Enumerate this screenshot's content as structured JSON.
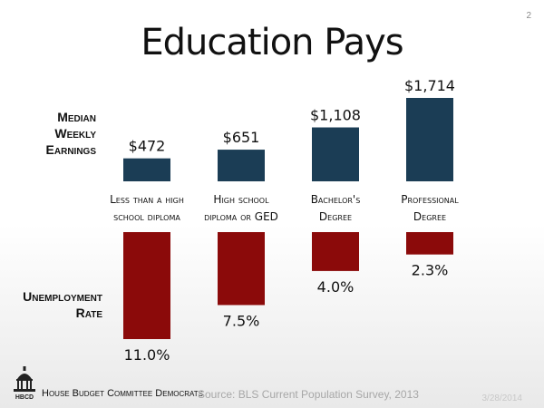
{
  "slide_number": "2",
  "title": "Education Pays",
  "labels": {
    "earnings": [
      "Median",
      "Weekly",
      "Earnings"
    ],
    "unemployment": [
      "Unemployment",
      "Rate"
    ]
  },
  "footer": {
    "organization": "House Budget Committee Democrats",
    "logo_text": "HBCD",
    "source": "Source: BLS Current Population Survey, 2013",
    "date": "3/28/2014"
  },
  "colors": {
    "earnings_bar": "#1b3d55",
    "unemployment_bar": "#8b0a0a"
  },
  "chart_data": {
    "type": "bar",
    "categories": [
      [
        "Less than a high",
        "school diploma"
      ],
      [
        "High school",
        "diploma or GED"
      ],
      [
        "Bachelor's",
        "Degree"
      ],
      [
        "Professional",
        "Degree"
      ]
    ],
    "series": [
      {
        "values": [
          472,
          651,
          1108,
          1714
        ],
        "value_labels": [
          "$472",
          "$651",
          "$1,108",
          "$1,714"
        ]
      },
      {
        "values": [
          11.0,
          7.5,
          4.0,
          2.3
        ],
        "value_labels": [
          "11.0%",
          "7.5%",
          "4.0%",
          "2.3%"
        ]
      }
    ]
  }
}
